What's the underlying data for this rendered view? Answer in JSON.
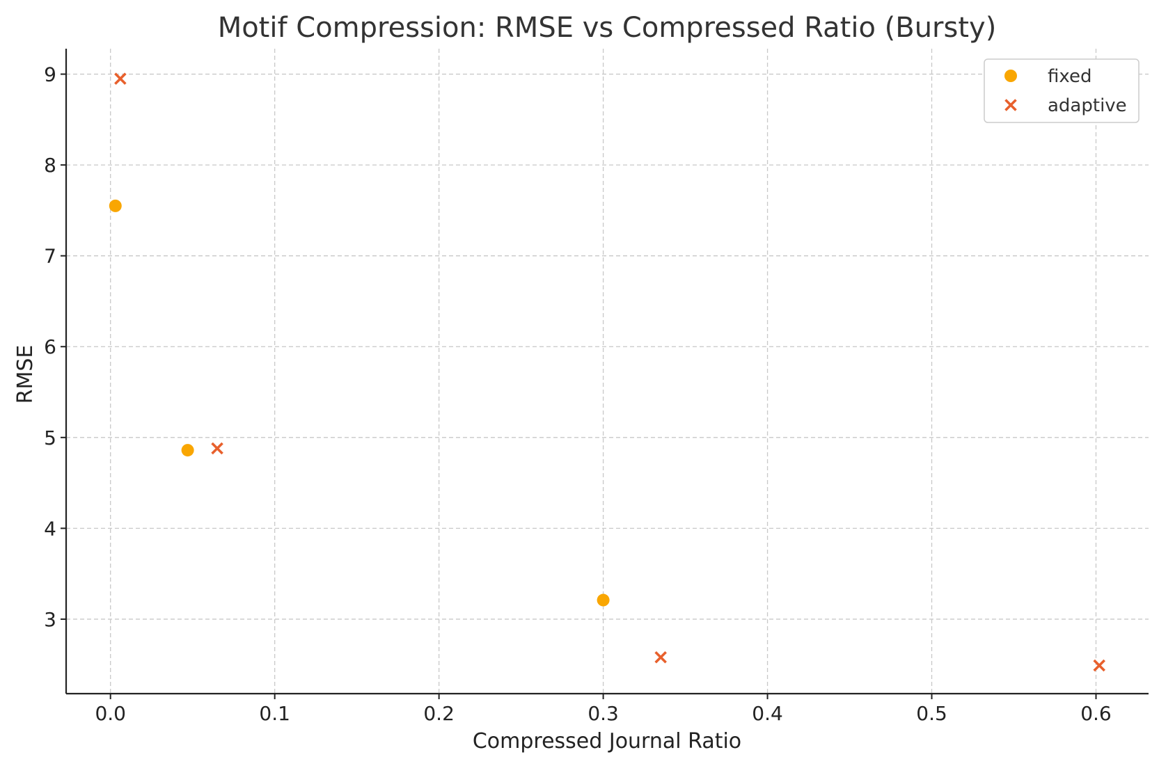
{
  "chart_data": {
    "type": "scatter",
    "title": "Motif Compression: RMSE vs Compressed Ratio (Bursty)",
    "xlabel": "Compressed Journal Ratio",
    "ylabel": "RMSE",
    "xlim": [
      -0.027,
      0.632
    ],
    "ylim": [
      2.18,
      9.28
    ],
    "xticks": [
      0.0,
      0.1,
      0.2,
      0.3,
      0.4,
      0.5,
      0.6
    ],
    "xtick_labels": [
      "0.0",
      "0.1",
      "0.2",
      "0.3",
      "0.4",
      "0.5",
      "0.6"
    ],
    "yticks": [
      3,
      4,
      5,
      6,
      7,
      8,
      9
    ],
    "ytick_labels": [
      "3",
      "4",
      "5",
      "6",
      "7",
      "8",
      "9"
    ],
    "grid": true,
    "legend_position": "top-right",
    "series": [
      {
        "name": "fixed",
        "marker": "circle",
        "color": "#F9A602",
        "points": [
          {
            "x": 0.003,
            "y": 7.55
          },
          {
            "x": 0.047,
            "y": 4.86
          },
          {
            "x": 0.3,
            "y": 3.21
          }
        ]
      },
      {
        "name": "adaptive",
        "marker": "x",
        "color": "#E8602C",
        "points": [
          {
            "x": 0.006,
            "y": 8.95
          },
          {
            "x": 0.065,
            "y": 4.88
          },
          {
            "x": 0.335,
            "y": 2.58
          },
          {
            "x": 0.602,
            "y": 2.49
          }
        ]
      }
    ]
  }
}
